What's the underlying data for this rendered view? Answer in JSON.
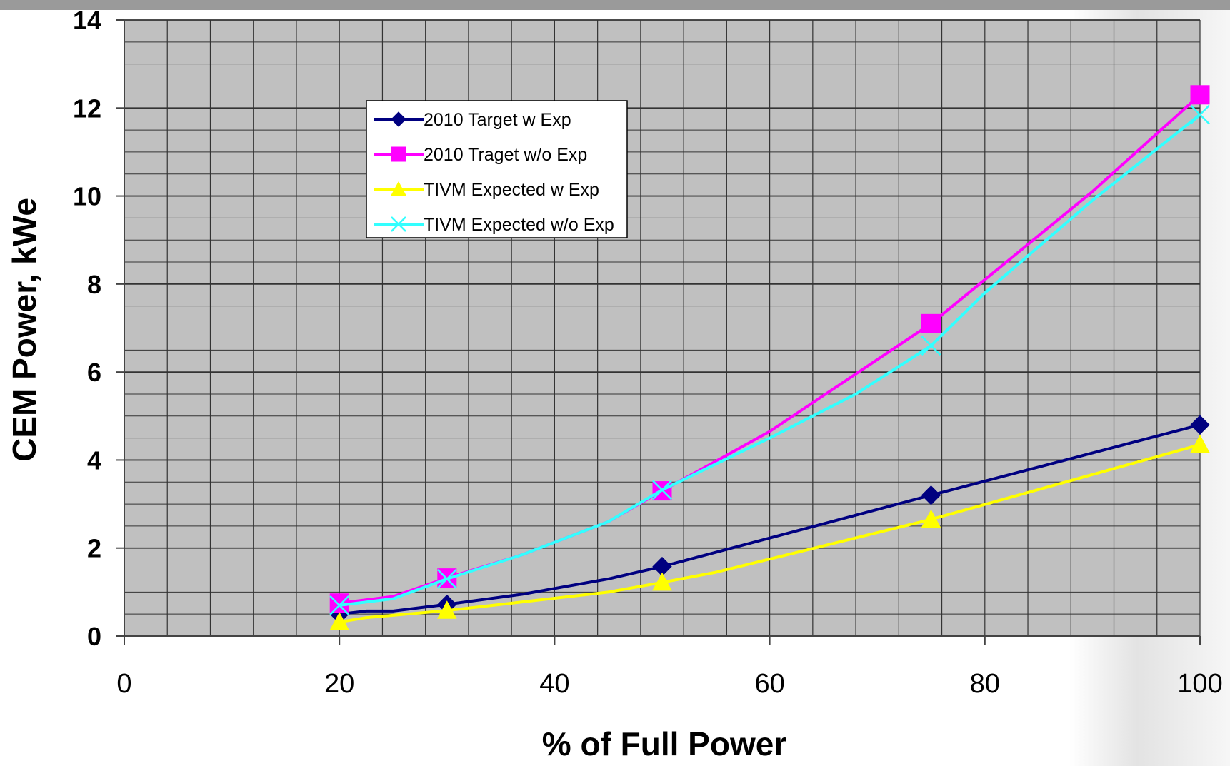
{
  "chart_data": {
    "type": "line",
    "title": "",
    "xlabel": "% of Full Power",
    "ylabel": "CEM Power, kWe",
    "xlim": [
      0,
      100
    ],
    "ylim": [
      0,
      14
    ],
    "xticks": [
      0,
      20,
      40,
      60,
      80,
      100
    ],
    "yticks": [
      0,
      2,
      4,
      6,
      8,
      10,
      12,
      14
    ],
    "grid": true,
    "legend_position": "upper-left-inside",
    "plot_background": "#c0c0c0",
    "series": [
      {
        "name": "2010 Target w Exp",
        "color": "#000080",
        "marker": "diamond",
        "x": [
          20,
          22.5,
          25,
          30,
          37,
          45,
          50,
          75,
          100
        ],
        "y": [
          0.5,
          0.57,
          0.57,
          0.72,
          0.95,
          1.3,
          1.58,
          3.2,
          4.8
        ]
      },
      {
        "name": "2010 Traget w/o Exp",
        "color": "#ff00ff",
        "marker": "square",
        "x": [
          20,
          25,
          30,
          37,
          45,
          50,
          60,
          75,
          80,
          90,
          100
        ],
        "y": [
          0.75,
          0.9,
          1.32,
          1.85,
          2.6,
          3.3,
          4.65,
          7.1,
          8.1,
          10.1,
          12.3
        ]
      },
      {
        "name": "TIVM Expected w Exp",
        "color": "#ffff00",
        "marker": "triangle",
        "x": [
          20,
          22.5,
          30,
          35,
          45,
          50,
          55,
          75,
          100
        ],
        "y": [
          0.32,
          0.42,
          0.58,
          0.72,
          1.0,
          1.22,
          1.45,
          2.65,
          4.35
        ]
      },
      {
        "name": "TIVM Expected w/o Exp",
        "color": "#33ffff",
        "marker": "x",
        "x": [
          20,
          25,
          30,
          37,
          45,
          50,
          60,
          68,
          75,
          80,
          90,
          100
        ],
        "y": [
          0.7,
          0.85,
          1.3,
          1.85,
          2.6,
          3.32,
          4.5,
          5.5,
          6.6,
          7.8,
          9.9,
          11.85
        ]
      }
    ]
  }
}
